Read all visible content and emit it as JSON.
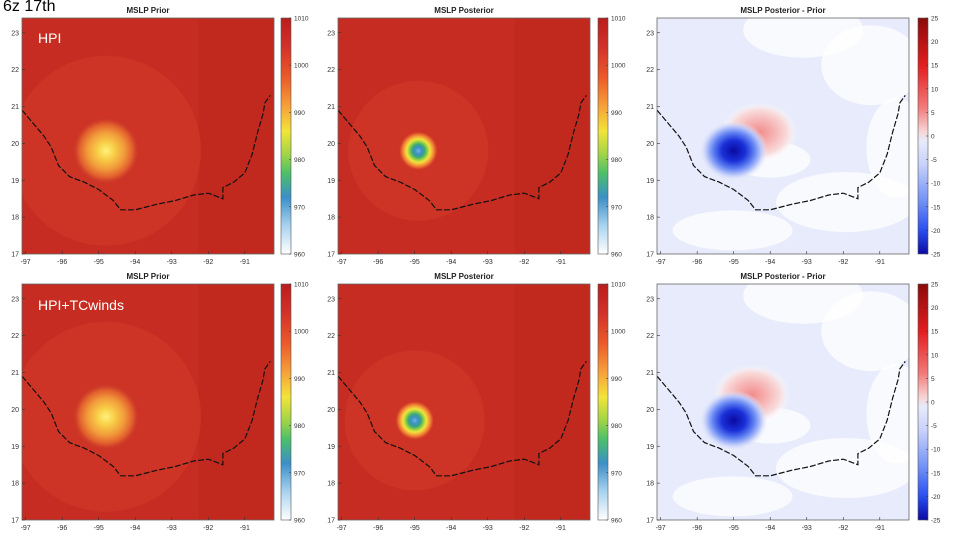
{
  "slide": {
    "title": "6z 17th",
    "row_labels": [
      "HPI",
      "HPI+TCwinds"
    ]
  },
  "colors": {
    "prior_scale": [
      "#ffffff",
      "#6fb7e6",
      "#3b8fc7",
      "#4bbf6a",
      "#9fd448",
      "#f2e43a",
      "#f7a43b",
      "#ea5a2a",
      "#d0312a",
      "#b81e1c"
    ],
    "diff_scale_neg": [
      "#0a0aa0",
      "#2a4ef0",
      "#6f8ff5",
      "#c8d2fb"
    ],
    "diff_scale_pos": [
      "#f7d4d4",
      "#f27b7b",
      "#e21e1e",
      "#8a0a0a"
    ],
    "coastline": "#111111",
    "background_diff": "#e7ebfb"
  },
  "chart_data": [
    {
      "type": "heatmap",
      "panel": "top-prior",
      "title": "MSLP Prior",
      "row": "HPI",
      "x_ticks": [
        "-97",
        "-96",
        "-95",
        "-94",
        "-93",
        "-92",
        "-91"
      ],
      "y_ticks": [
        "23",
        "22",
        "21",
        "20",
        "19",
        "18",
        "17"
      ],
      "xlim": [
        -97.1,
        -90.2
      ],
      "ylim": [
        17,
        23.4
      ],
      "center": [
        -94.8,
        19.8
      ],
      "min_value": 994,
      "colorbar": {
        "ticks": [
          "1010",
          "1000",
          "990",
          "980",
          "970",
          "960"
        ],
        "range": [
          960,
          1010
        ]
      }
    },
    {
      "type": "heatmap",
      "panel": "top-posterior",
      "title": "MSLP Posterior",
      "row": "HPI",
      "x_ticks": [
        "-97",
        "-96",
        "-95",
        "-94",
        "-93",
        "-92",
        "-91"
      ],
      "y_ticks": [
        "23",
        "22",
        "21",
        "20",
        "19",
        "18",
        "17"
      ],
      "xlim": [
        -97.1,
        -90.2
      ],
      "ylim": [
        17,
        23.4
      ],
      "center": [
        -94.9,
        19.8
      ],
      "min_value": 970,
      "colorbar": {
        "ticks": [
          "1010",
          "1000",
          "990",
          "980",
          "970",
          "960"
        ],
        "range": [
          960,
          1010
        ]
      }
    },
    {
      "type": "heatmap",
      "panel": "top-diff",
      "title": "MSLP Posterior - Prior",
      "row": "HPI",
      "x_ticks": [
        "-97",
        "-96",
        "-95",
        "-94",
        "-93",
        "-92",
        "-91"
      ],
      "y_ticks": [
        "23",
        "22",
        "21",
        "20",
        "19",
        "18",
        "17"
      ],
      "xlim": [
        -97.1,
        -90.2
      ],
      "ylim": [
        17,
        23.4
      ],
      "neg_center": [
        -95,
        19.8
      ],
      "neg_min": -25,
      "pos_center": [
        -94.3,
        20.3
      ],
      "pos_max": 8,
      "colorbar": {
        "ticks": [
          "25",
          "20",
          "15",
          "10",
          "5",
          "0",
          "-5",
          "-10",
          "-15",
          "-20",
          "-25"
        ],
        "range": [
          -25,
          25
        ]
      }
    },
    {
      "type": "heatmap",
      "panel": "bottom-prior",
      "title": "MSLP Prior",
      "row": "HPI+TCwinds",
      "x_ticks": [
        "-97",
        "-96",
        "-95",
        "-94",
        "-93",
        "-92",
        "-91"
      ],
      "y_ticks": [
        "23",
        "22",
        "21",
        "20",
        "19",
        "18",
        "17"
      ],
      "xlim": [
        -97.1,
        -90.2
      ],
      "ylim": [
        17,
        23.4
      ],
      "center": [
        -94.8,
        19.8
      ],
      "min_value": 994,
      "colorbar": {
        "ticks": [
          "1010",
          "1000",
          "990",
          "980",
          "970",
          "960"
        ],
        "range": [
          960,
          1010
        ]
      }
    },
    {
      "type": "heatmap",
      "panel": "bottom-posterior",
      "title": "MSLP Posterior",
      "row": "HPI+TCwinds",
      "x_ticks": [
        "-97",
        "-96",
        "-95",
        "-94",
        "-93",
        "-92",
        "-91"
      ],
      "y_ticks": [
        "23",
        "22",
        "21",
        "20",
        "19",
        "18",
        "17"
      ],
      "xlim": [
        -97.1,
        -90.2
      ],
      "ylim": [
        17,
        23.4
      ],
      "center": [
        -95,
        19.7
      ],
      "min_value": 972,
      "colorbar": {
        "ticks": [
          "1010",
          "1000",
          "990",
          "980",
          "970",
          "960"
        ],
        "range": [
          960,
          1010
        ]
      }
    },
    {
      "type": "heatmap",
      "panel": "bottom-diff",
      "title": "MSLP Posterior - Prior",
      "row": "HPI+TCwinds",
      "x_ticks": [
        "-97",
        "-96",
        "-95",
        "-94",
        "-93",
        "-92",
        "-91"
      ],
      "y_ticks": [
        "23",
        "22",
        "21",
        "20",
        "19",
        "18",
        "17"
      ],
      "xlim": [
        -97.1,
        -90.2
      ],
      "ylim": [
        17,
        23.4
      ],
      "neg_center": [
        -95,
        19.7
      ],
      "neg_min": -25,
      "pos_center": [
        -94.5,
        20.4
      ],
      "pos_max": 8,
      "colorbar": {
        "ticks": [
          "25",
          "20",
          "15",
          "10",
          "5",
          "0",
          "-5",
          "-10",
          "-15",
          "-20",
          "-25"
        ],
        "range": [
          -25,
          25
        ]
      }
    }
  ]
}
